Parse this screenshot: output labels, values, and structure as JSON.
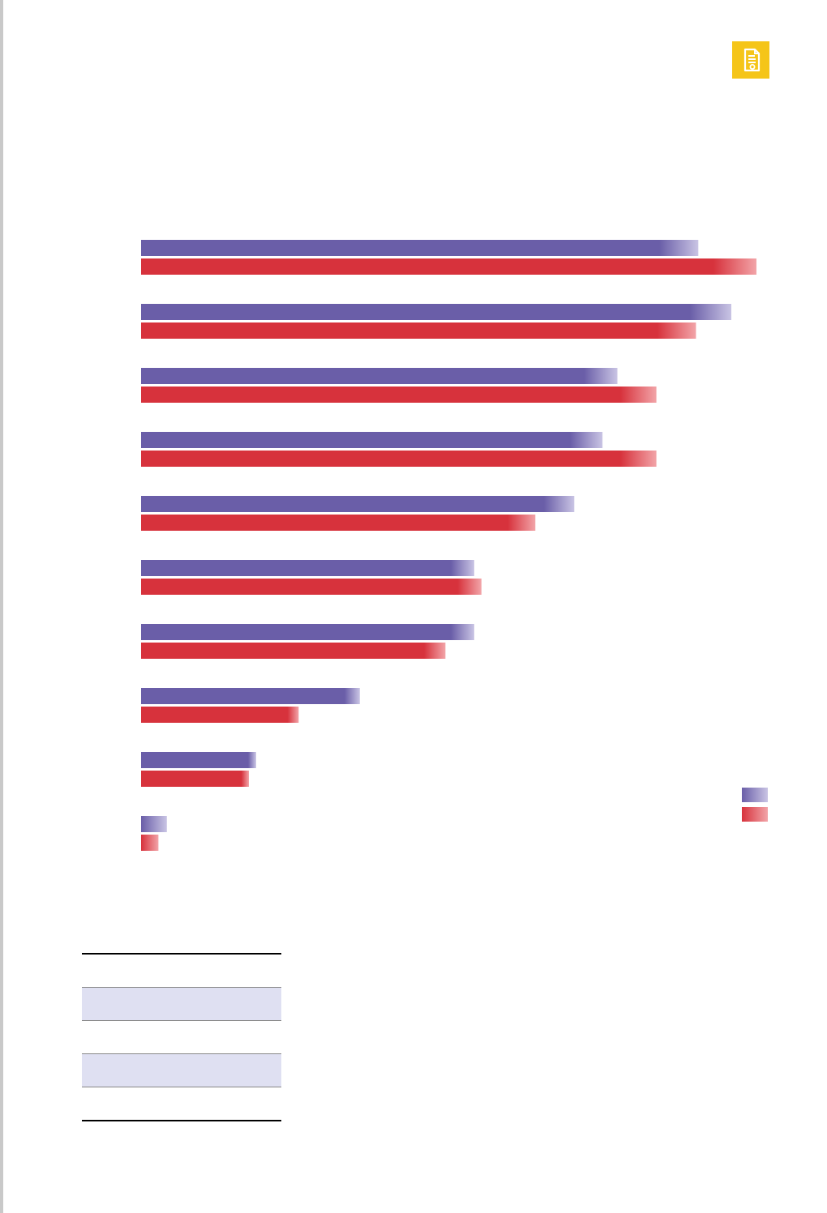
{
  "badge": {
    "icon": "document-icon",
    "color": "#f5c518"
  },
  "colors": {
    "series_a": "#6a5ea8",
    "series_b": "#d7323c"
  },
  "chart_data": {
    "type": "bar",
    "orientation": "horizontal",
    "categories": [
      "",
      "",
      "",
      "",
      "",
      "",
      "",
      "",
      "",
      ""
    ],
    "series": [
      {
        "values": [
          93,
          98.5,
          79.5,
          77,
          72.3,
          55.6,
          55.6,
          36.5,
          19.2,
          4.3
        ]
      },
      {
        "values": [
          102.7,
          92.6,
          86,
          86,
          65.8,
          56.8,
          50.8,
          26.3,
          18,
          2.9
        ]
      }
    ],
    "xlim": [
      0,
      105
    ],
    "title": "",
    "xlabel": "",
    "ylabel": "",
    "grid": false,
    "legend": "bottom-right"
  },
  "table": {
    "rows": [
      [
        "",
        "",
        ""
      ],
      [
        "",
        "",
        ""
      ],
      [
        "",
        "",
        ""
      ],
      [
        "",
        "",
        ""
      ],
      [
        "",
        "",
        ""
      ]
    ]
  }
}
